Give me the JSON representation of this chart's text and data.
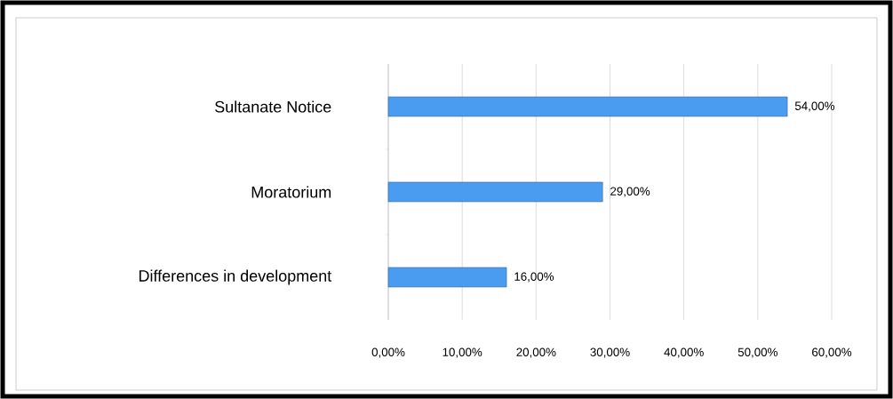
{
  "chart_data": {
    "type": "bar",
    "orientation": "horizontal",
    "categories": [
      "Sultanate Notice",
      "Moratorium",
      "Differences in development"
    ],
    "values": [
      54,
      29,
      16
    ],
    "value_labels": [
      "54,00%",
      "29,00%",
      "16,00%"
    ],
    "color": "#4a9cf0",
    "xlim": [
      0,
      60
    ],
    "xticks": [
      {
        "value": 0,
        "label": "0,00%"
      },
      {
        "value": 10,
        "label": "10,00%"
      },
      {
        "value": 20,
        "label": "20,00%"
      },
      {
        "value": 30,
        "label": "30,00%"
      },
      {
        "value": 40,
        "label": "40,00%"
      },
      {
        "value": 50,
        "label": "50,00%"
      },
      {
        "value": 60,
        "label": "60,00%"
      }
    ],
    "grid": "x"
  }
}
